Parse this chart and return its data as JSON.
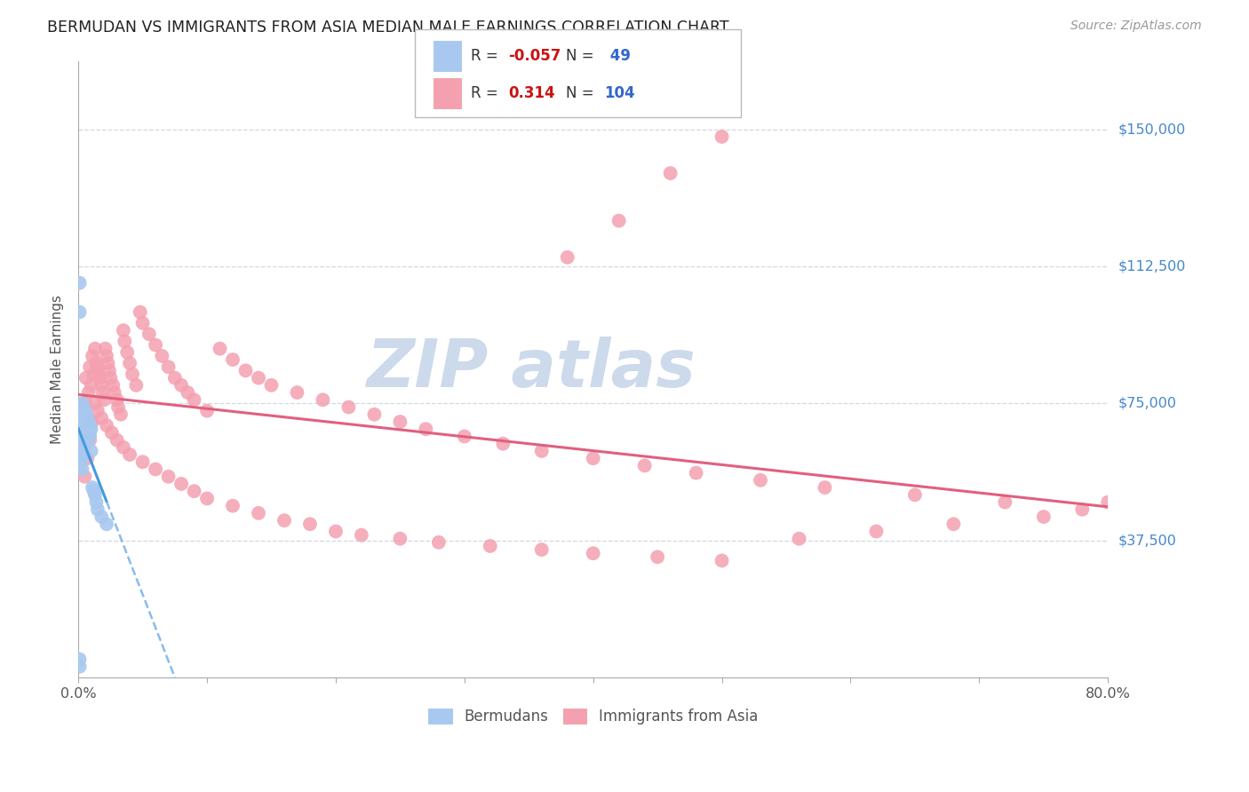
{
  "title": "BERMUDAN VS IMMIGRANTS FROM ASIA MEDIAN MALE EARNINGS CORRELATION CHART",
  "source": "Source: ZipAtlas.com",
  "ylabel": "Median Male Earnings",
  "ylim": [
    0,
    168750
  ],
  "xlim": [
    0.0,
    0.8
  ],
  "y_tick_values": [
    37500,
    75000,
    112500,
    150000
  ],
  "y_right_labels": [
    "$150,000",
    "$112,500",
    "$75,000",
    "$37,500"
  ],
  "bermuda_color": "#a8c8f0",
  "asia_color": "#f4a0b0",
  "bermuda_line_color_solid": "#4499dd",
  "bermuda_line_color_dash": "#88bbee",
  "asia_line_color": "#e06080",
  "grid_color": "#d0d8e0",
  "watermark_color": "#ccdaeb",
  "berm_x": [
    0.001,
    0.001,
    0.001,
    0.001,
    0.001,
    0.002,
    0.002,
    0.002,
    0.002,
    0.002,
    0.003,
    0.003,
    0.003,
    0.003,
    0.003,
    0.003,
    0.003,
    0.004,
    0.004,
    0.004,
    0.004,
    0.004,
    0.005,
    0.005,
    0.005,
    0.005,
    0.006,
    0.006,
    0.006,
    0.007,
    0.007,
    0.007,
    0.008,
    0.008,
    0.009,
    0.009,
    0.01,
    0.01,
    0.011,
    0.012,
    0.013,
    0.014,
    0.015,
    0.018,
    0.022,
    0.001,
    0.001,
    0.001,
    0.001
  ],
  "berm_y": [
    68000,
    65000,
    63000,
    60000,
    58000,
    72000,
    70000,
    67000,
    64000,
    61000,
    75000,
    72000,
    69000,
    66000,
    63000,
    60000,
    57000,
    74000,
    71000,
    68000,
    65000,
    62000,
    73000,
    70000,
    67000,
    64000,
    72000,
    69000,
    66000,
    71000,
    68000,
    65000,
    70000,
    67000,
    69000,
    66000,
    68000,
    62000,
    52000,
    51000,
    50000,
    48000,
    46000,
    44000,
    42000,
    108000,
    100000,
    5000,
    3000
  ],
  "asia_x": [
    0.005,
    0.006,
    0.008,
    0.009,
    0.01,
    0.011,
    0.012,
    0.013,
    0.014,
    0.015,
    0.016,
    0.017,
    0.018,
    0.019,
    0.02,
    0.021,
    0.022,
    0.023,
    0.024,
    0.025,
    0.027,
    0.028,
    0.03,
    0.031,
    0.033,
    0.035,
    0.036,
    0.038,
    0.04,
    0.042,
    0.045,
    0.048,
    0.05,
    0.055,
    0.06,
    0.065,
    0.07,
    0.075,
    0.08,
    0.085,
    0.09,
    0.1,
    0.11,
    0.12,
    0.13,
    0.14,
    0.15,
    0.17,
    0.19,
    0.21,
    0.23,
    0.25,
    0.27,
    0.3,
    0.33,
    0.36,
    0.4,
    0.44,
    0.48,
    0.53,
    0.58,
    0.65,
    0.72,
    0.005,
    0.007,
    0.009,
    0.011,
    0.013,
    0.015,
    0.018,
    0.022,
    0.026,
    0.03,
    0.035,
    0.04,
    0.05,
    0.06,
    0.07,
    0.08,
    0.09,
    0.1,
    0.12,
    0.14,
    0.16,
    0.18,
    0.2,
    0.22,
    0.25,
    0.28,
    0.32,
    0.36,
    0.4,
    0.45,
    0.5,
    0.56,
    0.62,
    0.68,
    0.75,
    0.78,
    0.8,
    0.38,
    0.42,
    0.46,
    0.5
  ],
  "asia_y": [
    75000,
    82000,
    78000,
    85000,
    80000,
    88000,
    83000,
    90000,
    86000,
    85000,
    83000,
    82000,
    80000,
    78000,
    76000,
    90000,
    88000,
    86000,
    84000,
    82000,
    80000,
    78000,
    76000,
    74000,
    72000,
    95000,
    92000,
    89000,
    86000,
    83000,
    80000,
    100000,
    97000,
    94000,
    91000,
    88000,
    85000,
    82000,
    80000,
    78000,
    76000,
    73000,
    90000,
    87000,
    84000,
    82000,
    80000,
    78000,
    76000,
    74000,
    72000,
    70000,
    68000,
    66000,
    64000,
    62000,
    60000,
    58000,
    56000,
    54000,
    52000,
    50000,
    48000,
    55000,
    60000,
    65000,
    70000,
    75000,
    73000,
    71000,
    69000,
    67000,
    65000,
    63000,
    61000,
    59000,
    57000,
    55000,
    53000,
    51000,
    49000,
    47000,
    45000,
    43000,
    42000,
    40000,
    39000,
    38000,
    37000,
    36000,
    35000,
    34000,
    33000,
    32000,
    38000,
    40000,
    42000,
    44000,
    46000,
    48000,
    115000,
    125000,
    138000,
    148000
  ]
}
